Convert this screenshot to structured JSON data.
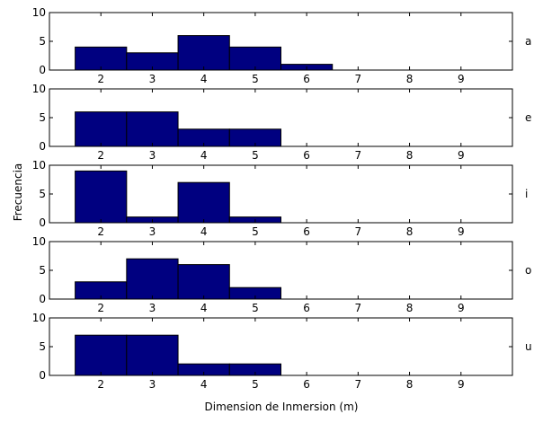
{
  "chart_data": {
    "type": "bar",
    "layout": "stacked-histogram-panels",
    "xlabel": "Dimension de Inmersion (m)",
    "ylabel": "Frecuencia",
    "xlim": [
      1,
      10
    ],
    "xticks": [
      2,
      3,
      4,
      5,
      6,
      7,
      8,
      9
    ],
    "ylim": [
      0,
      10
    ],
    "yticks": [
      0,
      5,
      10
    ],
    "bar_color": "#000080",
    "edge_color": "#000000",
    "grid": false,
    "panels": [
      {
        "label": "a",
        "x": [
          2,
          3,
          4,
          5,
          6
        ],
        "values": [
          4,
          3,
          6,
          4,
          1
        ]
      },
      {
        "label": "e",
        "x": [
          2,
          3,
          4,
          5
        ],
        "values": [
          6,
          6,
          3,
          3
        ]
      },
      {
        "label": "i",
        "x": [
          2,
          3,
          4,
          5
        ],
        "values": [
          9,
          1,
          7,
          1
        ]
      },
      {
        "label": "o",
        "x": [
          2,
          3,
          4,
          5
        ],
        "values": [
          3,
          7,
          6,
          2
        ]
      },
      {
        "label": "u",
        "x": [
          2,
          3,
          4,
          5
        ],
        "values": [
          7,
          7,
          2,
          2
        ]
      }
    ]
  }
}
